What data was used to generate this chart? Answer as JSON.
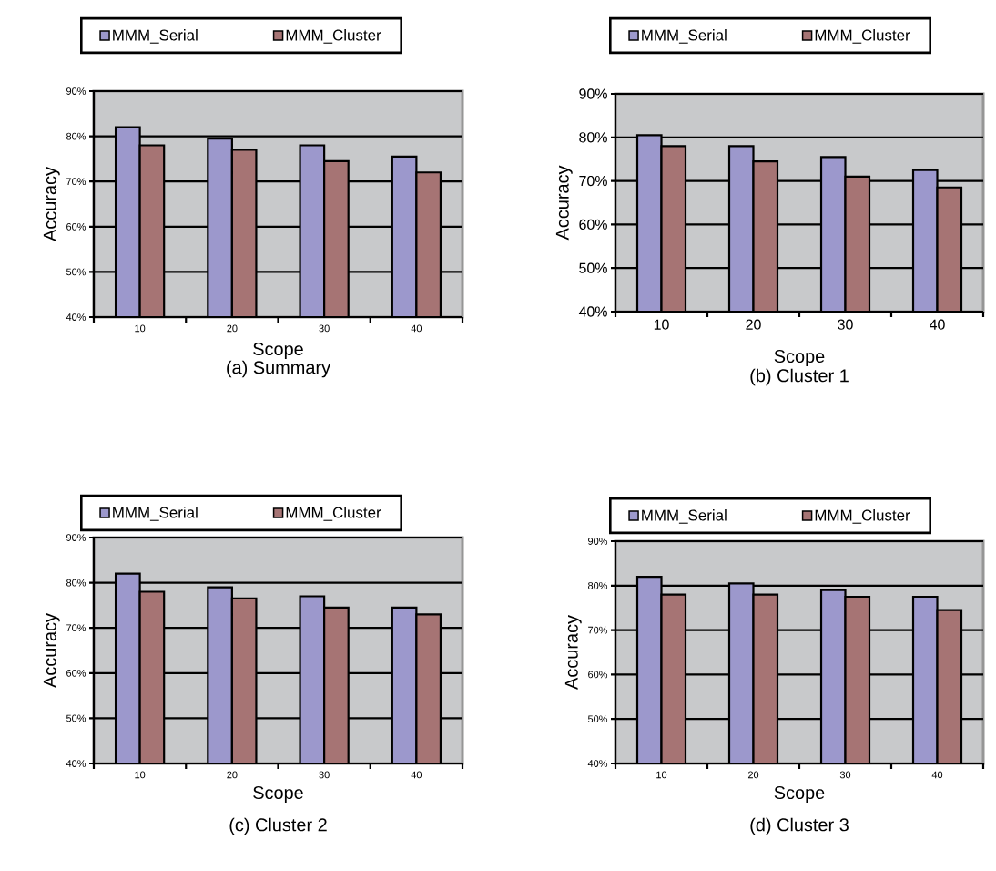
{
  "chart_data": [
    {
      "type": "bar",
      "title": "(a) Summary",
      "xlabel": "Scope",
      "ylabel": "Accuracy",
      "categories": [
        "10",
        "20",
        "30",
        "40"
      ],
      "series": [
        {
          "name": "MMM_Serial",
          "color": "#9c98cc",
          "values": [
            82,
            79.5,
            78,
            75.5
          ]
        },
        {
          "name": "MMM_Cluster",
          "color": "#a67474",
          "values": [
            78,
            77,
            74.5,
            72
          ]
        }
      ],
      "ylim": [
        40,
        90
      ],
      "yticks": [
        {
          "value": 40,
          "label": "40%"
        },
        {
          "value": 50,
          "label": "50%"
        },
        {
          "value": 60,
          "label": "60%"
        },
        {
          "value": 70,
          "label": "70%"
        },
        {
          "value": 80,
          "label": "80%"
        },
        {
          "value": 90,
          "label": "90%"
        }
      ],
      "grid": "y",
      "legend": "top"
    },
    {
      "type": "bar",
      "title": "(b) Cluster 1",
      "xlabel": "Scope",
      "ylabel": "Accuracy",
      "categories": [
        "10",
        "20",
        "30",
        "40"
      ],
      "series": [
        {
          "name": "MMM_Serial",
          "color": "#9c98cc",
          "values": [
            80.5,
            78,
            75.5,
            72.5
          ]
        },
        {
          "name": "MMM_Cluster",
          "color": "#a67474",
          "values": [
            78,
            74.5,
            71,
            68.5
          ]
        }
      ],
      "ylim": [
        40,
        90
      ],
      "yticks": [
        {
          "value": 40,
          "label": "40%"
        },
        {
          "value": 50,
          "label": "50%"
        },
        {
          "value": 60,
          "label": "60%"
        },
        {
          "value": 70,
          "label": "70%"
        },
        {
          "value": 80,
          "label": "80%"
        },
        {
          "value": 90,
          "label": "90%"
        }
      ],
      "grid": "y",
      "legend": "top"
    },
    {
      "type": "bar",
      "title": "(c) Cluster 2",
      "xlabel": "Scope",
      "ylabel": "Accuracy",
      "categories": [
        "10",
        "20",
        "30",
        "40"
      ],
      "series": [
        {
          "name": "MMM_Serial",
          "color": "#9c98cc",
          "values": [
            82,
            79,
            77,
            74.5
          ]
        },
        {
          "name": "MMM_Cluster",
          "color": "#a67474",
          "values": [
            78,
            76.5,
            74.5,
            73
          ]
        }
      ],
      "ylim": [
        40,
        90
      ],
      "yticks": [
        {
          "value": 40,
          "label": "40%"
        },
        {
          "value": 50,
          "label": "50%"
        },
        {
          "value": 60,
          "label": "60%"
        },
        {
          "value": 70,
          "label": "70%"
        },
        {
          "value": 80,
          "label": "80%"
        },
        {
          "value": 90,
          "label": "90%"
        }
      ],
      "grid": "y",
      "legend": "top"
    },
    {
      "type": "bar",
      "title": "(d) Cluster 3",
      "xlabel": "Scope",
      "ylabel": "Accuracy",
      "categories": [
        "10",
        "20",
        "30",
        "40"
      ],
      "series": [
        {
          "name": "MMM_Serial",
          "color": "#9c98cc",
          "values": [
            82,
            80.5,
            79,
            77.5
          ]
        },
        {
          "name": "MMM_Cluster",
          "color": "#a67474",
          "values": [
            78,
            78,
            77.5,
            74.5
          ]
        }
      ],
      "ylim": [
        40,
        90
      ],
      "yticks": [
        {
          "value": 40,
          "label": "40%"
        },
        {
          "value": 50,
          "label": "50%"
        },
        {
          "value": 60,
          "label": "60%"
        },
        {
          "value": 70,
          "label": "70%"
        },
        {
          "value": 80,
          "label": "80%"
        },
        {
          "value": 90,
          "label": "90%"
        }
      ],
      "grid": "y",
      "legend": "top"
    }
  ]
}
